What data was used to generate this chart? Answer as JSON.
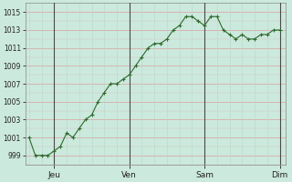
{
  "y_values": [
    1001,
    999,
    999,
    999,
    999.5,
    1000,
    1001.5,
    1001,
    1002,
    1003,
    1003.5,
    1005,
    1006,
    1007,
    1007,
    1007.5,
    1008,
    1009,
    1010,
    1011,
    1011.5,
    1011.5,
    1012,
    1013,
    1013.5,
    1014.5,
    1014.5,
    1014,
    1013.5,
    1014.5,
    1014.5,
    1013,
    1012.5,
    1012,
    1012.5,
    1012,
    1012,
    1012.5,
    1012.5,
    1013,
    1013
  ],
  "x_tick_positions": [
    4,
    16,
    28,
    40
  ],
  "x_tick_labels": [
    "Jeu",
    "Ven",
    "Sam",
    "Dim"
  ],
  "y_tick_values": [
    999,
    1001,
    1003,
    1005,
    1007,
    1009,
    1011,
    1013,
    1015
  ],
  "ylim": [
    998.0,
    1016.0
  ],
  "xlim": [
    -0.5,
    41
  ],
  "line_color": "#2d6a2d",
  "marker_color": "#2d6a2d",
  "bg_color": "#cce9dd",
  "plot_bg": "#cce9dd",
  "h_grid_color": "#d9a0a0",
  "v_grid_color": "#b8d8cc",
  "day_line_color": "#4a4a4a"
}
